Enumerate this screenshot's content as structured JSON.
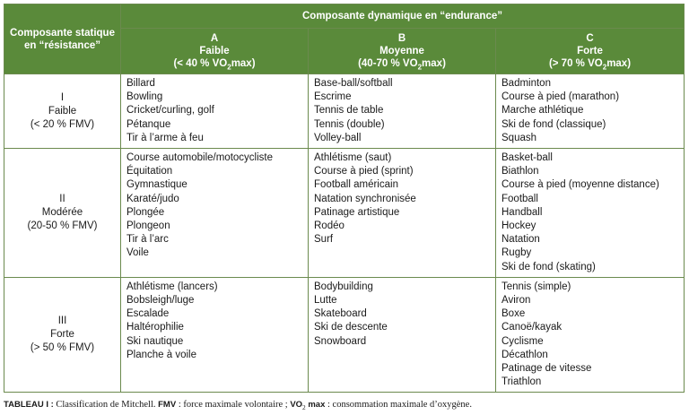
{
  "table": {
    "corner_header": "Composante statique en “résistance”",
    "dynamic_header": "Composante dynamique en “endurance”",
    "columns": [
      {
        "letter": "A",
        "name": "Faible",
        "range_pre": "(< 40 % VO",
        "range_sub": "2",
        "range_post": "max)"
      },
      {
        "letter": "B",
        "name": "Moyenne",
        "range_pre": "(40-70 % VO",
        "range_sub": "2",
        "range_post": "max)"
      },
      {
        "letter": "C",
        "name": "Forte",
        "range_pre": "(> 70 % VO",
        "range_sub": "2",
        "range_post": "max)"
      }
    ],
    "rows": [
      {
        "roman": "I",
        "name": "Faible",
        "range": "(< 20 % FMV)",
        "cells": [
          [
            "Billard",
            "Bowling",
            "Cricket/curling, golf",
            "Pétanque",
            "Tir à l’arme à feu"
          ],
          [
            "Base-ball/softball",
            "Escrime",
            "Tennis de table",
            "Tennis (double)",
            "Volley-ball"
          ],
          [
            "Badminton",
            "Course à pied (marathon)",
            "Marche athlétique",
            "Ski de fond (classique)",
            "Squash"
          ]
        ]
      },
      {
        "roman": "II",
        "name": "Modérée",
        "range": "(20-50 % FMV)",
        "cells": [
          [
            "Course automobile/motocycliste",
            "Équitation",
            "Gymnastique",
            "Karaté/judo",
            "Plongée",
            "Plongeon",
            "Tir à l’arc",
            "Voile"
          ],
          [
            "Athlétisme (saut)",
            "Course à pied (sprint)",
            "Football américain",
            "Natation synchronisée",
            "Patinage artistique",
            "Rodéo",
            "Surf"
          ],
          [
            "Basket-ball",
            "Biathlon",
            "Course à pied (moyenne distance)",
            "Football",
            "Handball",
            "Hockey",
            "Natation",
            "Rugby",
            "Ski de fond (skating)"
          ]
        ]
      },
      {
        "roman": "III",
        "name": "Forte",
        "range": "(> 50 % FMV)",
        "cells": [
          [
            "Athlétisme (lancers)",
            "Bobsleigh/luge",
            "Escalade",
            "Haltérophilie",
            "Ski nautique",
            "Planche à voile"
          ],
          [
            "Bodybuilding",
            "Lutte",
            "Skateboard",
            "Ski de descente",
            "Snowboard"
          ],
          [
            "Tennis (simple)",
            "Aviron",
            "Boxe",
            "Canoë/kayak",
            "Cyclisme",
            "Décathlon",
            "Patinage de vitesse",
            "Triathlon"
          ]
        ]
      }
    ]
  },
  "caption": {
    "label": "TABLEAU I :",
    "text_1": " Classification de Mitchell. ",
    "fmv_abbr": "FMV",
    "text_2": " : force maximale volontaire ; ",
    "vo2_pre": "VO",
    "vo2_sub": "2",
    "vo2_post": " max",
    "text_3": " : consommation maximale d’oxygène."
  },
  "colors": {
    "header_bg": "#5a8a3a",
    "border": "#6b8a4e"
  }
}
